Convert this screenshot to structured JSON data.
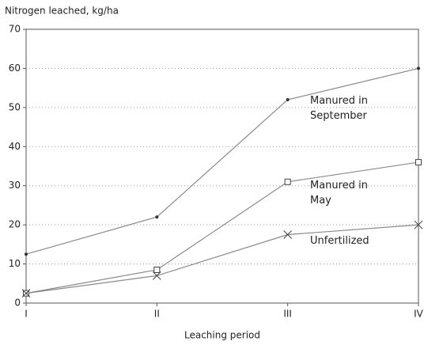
{
  "chart_data": {
    "type": "line",
    "y_label": "Nitrogen leached, kg/ha",
    "x_label": "Leaching period",
    "categories": [
      "I",
      "II",
      "III",
      "IV"
    ],
    "series": [
      {
        "name": "Manured in September",
        "color": "#8a8a8a",
        "marker": "dot",
        "values": [
          12.5,
          22,
          52,
          60
        ]
      },
      {
        "name": "Manured in May",
        "color": "#8a8a8a",
        "marker": "square",
        "values": [
          2.5,
          8.5,
          31,
          36
        ]
      },
      {
        "name": "Unfertilized",
        "color": "#8a8a8a",
        "marker": "x",
        "values": [
          2.5,
          7,
          17.5,
          20
        ]
      }
    ],
    "ylim": [
      0,
      70
    ],
    "yticks": [
      0,
      10,
      20,
      30,
      40,
      50,
      60,
      70
    ],
    "grid": true
  }
}
